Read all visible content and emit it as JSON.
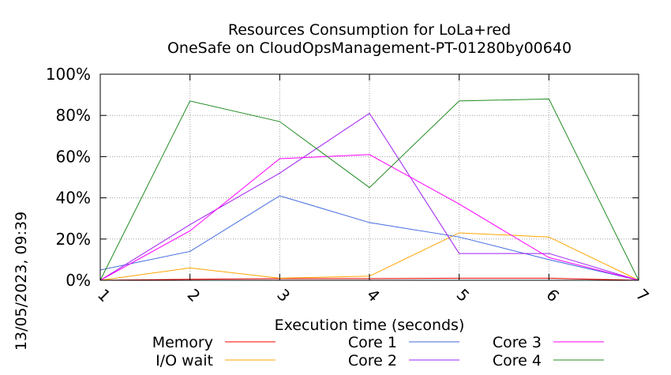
{
  "chart_data": {
    "type": "line",
    "title_line1": "Resources Consumption for LoLa+red",
    "title_line2": "OneSafe on CloudOpsManagement-PT-01280by00640",
    "xlabel": "Execution time (seconds)",
    "ylabel": "",
    "x": [
      1,
      2,
      3,
      4,
      5,
      6,
      7
    ],
    "xlim": [
      1,
      7
    ],
    "ylim": [
      0,
      100
    ],
    "x_tick_labels": [
      "1",
      "2",
      "3",
      "4",
      "5",
      "6",
      "7"
    ],
    "y_ticks": [
      0,
      20,
      40,
      60,
      80,
      100
    ],
    "y_tick_labels": [
      "0%",
      "20%",
      "40%",
      "60%",
      "80%",
      "100%"
    ],
    "grid": true,
    "legend_position": "bottom",
    "timestamp": "13/05/2023, 09:39",
    "series": [
      {
        "name": "Memory",
        "color": "#ff0000",
        "values": [
          0,
          0.5,
          0.8,
          0.8,
          1.0,
          1.0,
          0
        ]
      },
      {
        "name": "I/O wait",
        "color": "#ffa500",
        "values": [
          0,
          6,
          1,
          2,
          23,
          21,
          0
        ]
      },
      {
        "name": "Core 1",
        "color": "#4169e1",
        "values": [
          5,
          14,
          41,
          28,
          21,
          10,
          0
        ]
      },
      {
        "name": "Core 2",
        "color": "#a020f0",
        "values": [
          0,
          27,
          52,
          81,
          13,
          13,
          0
        ]
      },
      {
        "name": "Core 3",
        "color": "#ff00ff",
        "values": [
          0,
          24,
          59,
          61,
          37,
          11,
          0
        ]
      },
      {
        "name": "Core 4",
        "color": "#228b22",
        "values": [
          0,
          87,
          77,
          45,
          87,
          88,
          0
        ]
      }
    ]
  }
}
